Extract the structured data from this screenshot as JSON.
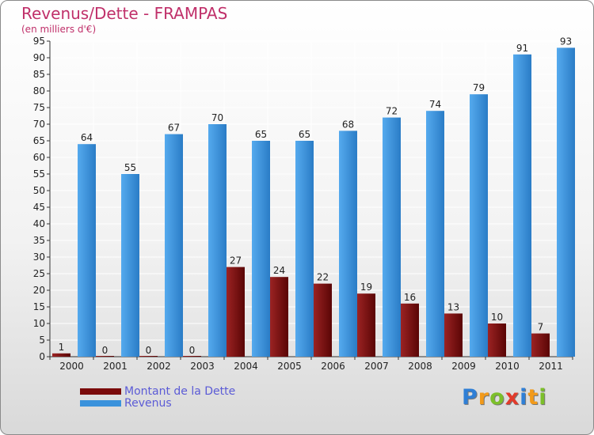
{
  "chart_data": {
    "type": "bar",
    "title": "Revenus/Dette - FRAMPAS",
    "subtitle": "(en milliers d'€)",
    "categories": [
      "2000",
      "2001",
      "2002",
      "2003",
      "2004",
      "2005",
      "2006",
      "2007",
      "2008",
      "2009",
      "2010",
      "2011"
    ],
    "series": [
      {
        "name": "Montant de la Dette",
        "color": "#7a0a0a",
        "values": [
          1,
          0,
          0,
          0,
          27,
          24,
          22,
          19,
          16,
          13,
          10,
          7
        ]
      },
      {
        "name": "Revenus",
        "color": "#3a92dc",
        "values": [
          64,
          55,
          67,
          70,
          65,
          65,
          68,
          72,
          74,
          79,
          91,
          93
        ]
      }
    ],
    "ylim": [
      0,
      95
    ],
    "yticks": [
      0,
      5,
      10,
      15,
      20,
      25,
      30,
      35,
      40,
      45,
      50,
      55,
      60,
      65,
      70,
      75,
      80,
      85,
      90,
      95
    ],
    "grid": true,
    "xlabel": "",
    "ylabel": ""
  },
  "legend": {
    "items": [
      {
        "label": "Montant de la Dette",
        "color": "#7a0a0a"
      },
      {
        "label": "Revenus",
        "color": "#3a92dc"
      }
    ]
  },
  "logo": {
    "letters": [
      "P",
      "r",
      "o",
      "x",
      "i",
      "t",
      "i"
    ],
    "colors": [
      "#2f7fd6",
      "#f29a1a",
      "#7cbf2a",
      "#e23a2a",
      "#2f7fd6",
      "#f29a1a",
      "#7cbf2a"
    ]
  }
}
